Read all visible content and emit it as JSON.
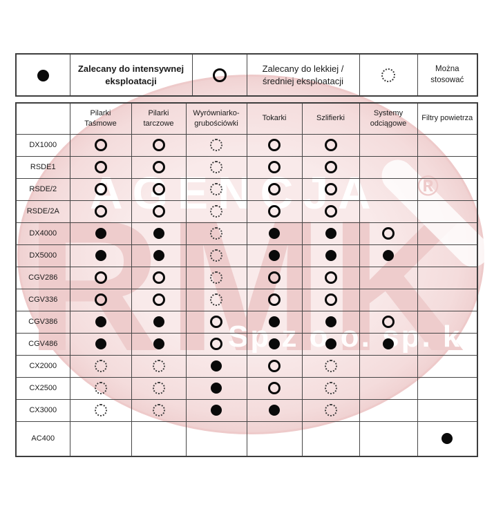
{
  "colors": {
    "border": "#454545",
    "text": "#1a1a1a",
    "watermark_pink_light": "#f9eaea",
    "watermark_pink": "#eecccc",
    "symbol_black": "#0a0a0a"
  },
  "legend": [
    {
      "symbol": "filled",
      "label": "Zalecany do intensywnej\neksploatacji"
    },
    {
      "symbol": "open",
      "label": "Zalecany do lekkiej /\nśredniej eksploatacji"
    },
    {
      "symbol": "dotted",
      "label": "Można\nstosować"
    }
  ],
  "symbol_meanings": {
    "filled": "Zalecany do intensywnej eksploatacji",
    "open": "Zalecany do lekkiej / średniej eksploatacji",
    "dotted": "Można stosować"
  },
  "table": {
    "columns": [
      "Pilarki\nTaśmowe",
      "Pilarki\ntarczowe",
      "Wyrówniarko-\ngrubościówki",
      "Tokarki",
      "Szlifierki",
      "Systemy\nodciągowe",
      "Filtry powietrza"
    ],
    "rows": [
      {
        "model": "DX1000",
        "cells": [
          "open",
          "open",
          "dotted",
          "open",
          "open",
          "",
          ""
        ]
      },
      {
        "model": "RSDE1",
        "cells": [
          "open",
          "open",
          "dotted",
          "open",
          "open",
          "",
          ""
        ]
      },
      {
        "model": "RSDE/2",
        "cells": [
          "open",
          "open",
          "dotted",
          "open",
          "open",
          "",
          ""
        ]
      },
      {
        "model": "RSDE/2A",
        "cells": [
          "open",
          "open",
          "dotted",
          "open",
          "open",
          "",
          ""
        ]
      },
      {
        "model": "DX4000",
        "cells": [
          "filled",
          "filled",
          "dotted",
          "filled",
          "filled",
          "open",
          ""
        ]
      },
      {
        "model": "DX5000",
        "cells": [
          "filled",
          "filled",
          "dotted",
          "filled",
          "filled",
          "filled",
          ""
        ]
      },
      {
        "model": "CGV286",
        "cells": [
          "open",
          "open",
          "dotted",
          "open",
          "open",
          "",
          ""
        ]
      },
      {
        "model": "CGV336",
        "cells": [
          "open",
          "open",
          "dotted",
          "open",
          "open",
          "",
          ""
        ]
      },
      {
        "model": "CGV386",
        "cells": [
          "filled",
          "filled",
          "open",
          "filled",
          "filled",
          "open",
          ""
        ]
      },
      {
        "model": "CGV486",
        "cells": [
          "filled",
          "filled",
          "open",
          "filled",
          "filled",
          "filled",
          ""
        ]
      },
      {
        "model": "CX2000",
        "cells": [
          "dotted",
          "dotted",
          "filled",
          "open",
          "dotted",
          "",
          ""
        ]
      },
      {
        "model": "CX2500",
        "cells": [
          "dotted",
          "dotted",
          "filled",
          "open",
          "dotted",
          "",
          ""
        ]
      },
      {
        "model": "CX3000",
        "cells": [
          "dotted",
          "dotted",
          "filled",
          "filled",
          "dotted",
          "",
          ""
        ]
      },
      {
        "model": "AC400",
        "cells": [
          "",
          "",
          "",
          "",
          "",
          "",
          "filled"
        ],
        "tall": true
      }
    ]
  },
  "watermark": {
    "line1": "AGENCJA",
    "registered": "®",
    "line2": "RMK",
    "line3": "Sp z o.o. sp. k."
  }
}
